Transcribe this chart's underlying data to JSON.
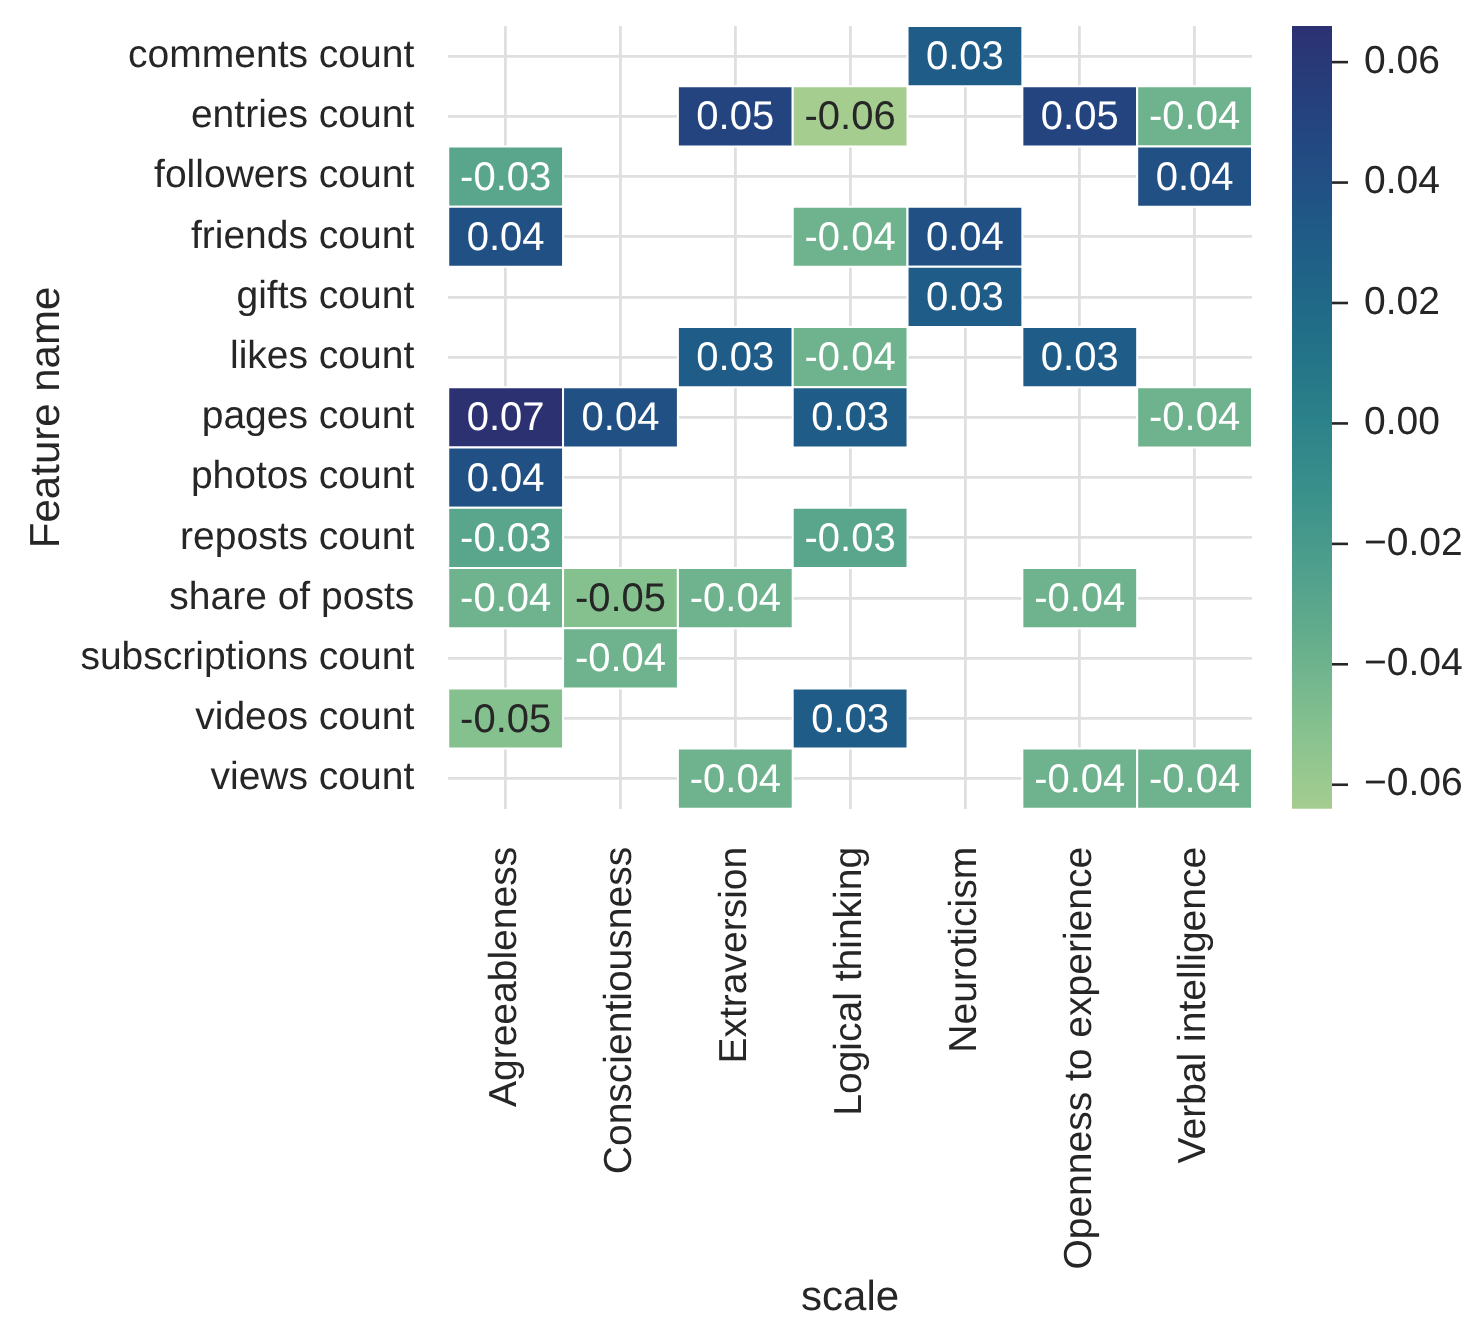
{
  "chart_data": {
    "type": "heatmap",
    "xlabel": "scale",
    "ylabel": "Feature name",
    "categories": [
      "Agreeableness",
      "Conscientiousness",
      "Extraversion",
      "Logical thinking",
      "Neuroticism",
      "Openness to experience",
      "Verbal intelligence"
    ],
    "y_categories": [
      "comments count",
      "entries count",
      "followers count",
      "friends count",
      "gifts count",
      "likes count",
      "pages count",
      "photos count",
      "reposts count",
      "share of posts",
      "subscriptions count",
      "videos count",
      "views count"
    ],
    "cells": [
      [
        null,
        null,
        null,
        null,
        0.03,
        null,
        null
      ],
      [
        null,
        null,
        0.05,
        -0.064,
        null,
        0.05,
        -0.04
      ],
      [
        -0.03,
        null,
        null,
        null,
        null,
        null,
        0.04
      ],
      [
        0.04,
        null,
        null,
        -0.04,
        0.04,
        null,
        null
      ],
      [
        null,
        null,
        null,
        null,
        0.03,
        null,
        null
      ],
      [
        null,
        null,
        0.03,
        -0.04,
        null,
        0.03,
        null
      ],
      [
        0.066,
        0.04,
        null,
        0.03,
        null,
        null,
        -0.04
      ],
      [
        0.04,
        null,
        null,
        null,
        null,
        null,
        null
      ],
      [
        -0.03,
        null,
        null,
        -0.03,
        null,
        null,
        null
      ],
      [
        -0.04,
        -0.05,
        -0.04,
        null,
        null,
        -0.04,
        null
      ],
      [
        null,
        -0.04,
        null,
        null,
        null,
        null,
        null
      ],
      [
        -0.05,
        null,
        null,
        0.03,
        null,
        null,
        null
      ],
      [
        null,
        null,
        -0.04,
        null,
        null,
        -0.04,
        -0.04
      ]
    ],
    "cell_labels": [
      [
        null,
        null,
        null,
        null,
        "0.03",
        null,
        null
      ],
      [
        null,
        null,
        "0.05",
        "-0.06",
        null,
        "0.05",
        "-0.04"
      ],
      [
        "-0.03",
        null,
        null,
        null,
        null,
        null,
        "0.04"
      ],
      [
        "0.04",
        null,
        null,
        "-0.04",
        "0.04",
        null,
        null
      ],
      [
        null,
        null,
        null,
        null,
        "0.03",
        null,
        null
      ],
      [
        null,
        null,
        "0.03",
        "-0.04",
        null,
        "0.03",
        null
      ],
      [
        "0.07",
        "0.04",
        null,
        "0.03",
        null,
        null,
        "-0.04"
      ],
      [
        "0.04",
        null,
        null,
        null,
        null,
        null,
        null
      ],
      [
        "-0.03",
        null,
        null,
        "-0.03",
        null,
        null,
        null
      ],
      [
        "-0.04",
        "-0.05",
        "-0.04",
        null,
        null,
        "-0.04",
        null
      ],
      [
        null,
        "-0.04",
        null,
        null,
        null,
        null,
        null
      ],
      [
        "-0.05",
        null,
        null,
        "0.03",
        null,
        null,
        null
      ],
      [
        null,
        null,
        "-0.04",
        null,
        null,
        "-0.04",
        "-0.04"
      ]
    ],
    "clim": [
      -0.064,
      0.066
    ],
    "cticks": [
      0.06,
      0.04,
      0.02,
      {
        "value": 0,
        "label": "0.00"
      },
      {
        "value": -0.02,
        "label": "−0.02"
      },
      {
        "value": -0.04,
        "label": "−0.04"
      },
      {
        "value": -0.06,
        "label": "−0.06"
      }
    ],
    "grid": true
  }
}
